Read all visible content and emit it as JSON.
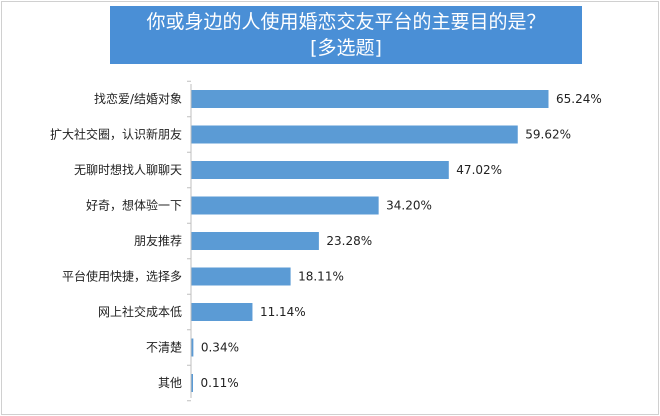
{
  "chart_data": {
    "type": "bar",
    "orientation": "horizontal",
    "title": "你或身边的人使用婚恋交友平台的主要目的是？",
    "subtitle": "[多选题]",
    "categories": [
      "找恋爱/结婚对象",
      "扩大社交圈，认识新朋友",
      "无聊时想找人聊聊天",
      "好奇，想体验一下",
      "朋友推荐",
      "平台使用快捷，选择多",
      "网上社交成本低",
      "不清楚",
      "其他"
    ],
    "values": [
      65.24,
      59.62,
      47.02,
      34.2,
      23.28,
      18.11,
      11.14,
      0.34,
      0.11
    ],
    "value_labels": [
      "65.24%",
      "59.62%",
      "47.02%",
      "34.20%",
      "23.28%",
      "18.11%",
      "11.14%",
      "0.34%",
      "0.11%"
    ],
    "xlim": [
      0,
      65.24
    ],
    "grid": false,
    "legend": "none",
    "colors": {
      "bar": "#5b9bd5",
      "title_bg": "#4a8fd6",
      "axis": "#bfbfbf"
    }
  }
}
